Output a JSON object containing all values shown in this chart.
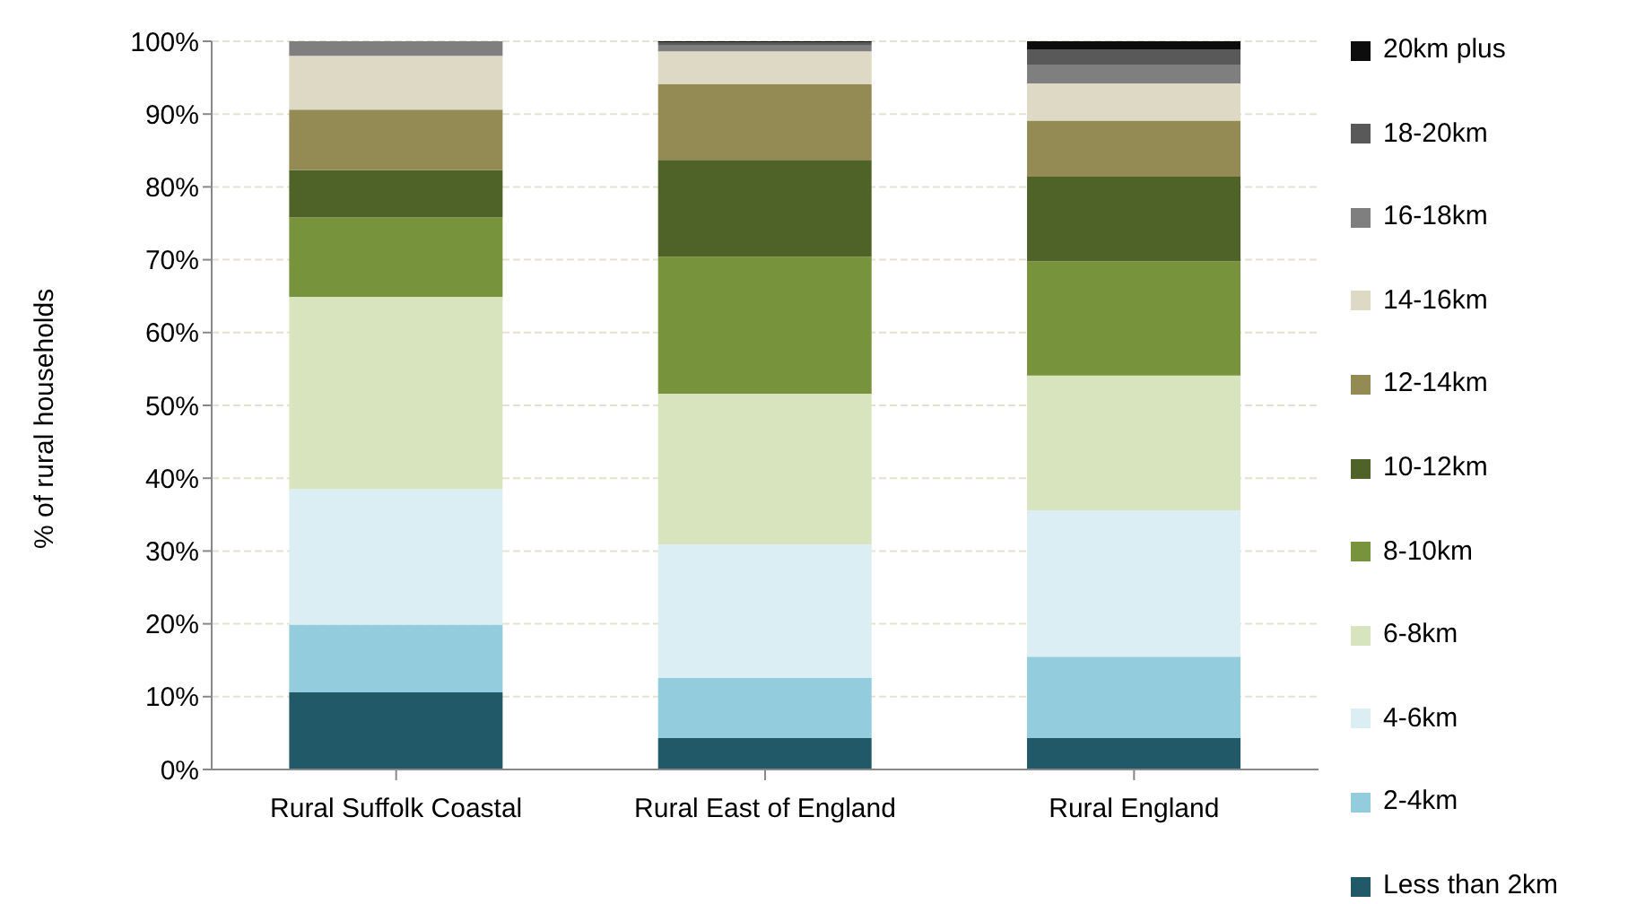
{
  "chart_data": {
    "type": "bar",
    "stacked": true,
    "ylabel": "% of rural households",
    "categories": [
      "Rural Suffolk Coastal",
      "Rural East of England",
      "Rural England"
    ],
    "series": [
      {
        "name": "Less than 2km",
        "color": "#215968",
        "values": [
          10.6,
          4.3,
          4.3
        ]
      },
      {
        "name": "2-4km",
        "color": "#93cddd",
        "values": [
          9.3,
          8.3,
          11.2
        ]
      },
      {
        "name": "4-6km",
        "color": "#dbeef4",
        "values": [
          18.6,
          18.3,
          20.1
        ]
      },
      {
        "name": "6-8km",
        "color": "#d7e4bd",
        "values": [
          26.4,
          20.7,
          18.5
        ]
      },
      {
        "name": "8-10km",
        "color": "#77933c",
        "values": [
          10.9,
          18.8,
          15.7
        ]
      },
      {
        "name": "10-12km",
        "color": "#4f6228",
        "values": [
          6.5,
          13.3,
          11.6
        ]
      },
      {
        "name": "12-14km",
        "color": "#948a54",
        "values": [
          8.3,
          10.4,
          7.7
        ]
      },
      {
        "name": "14-16km",
        "color": "#ddd9c4",
        "values": [
          7.4,
          4.5,
          5.1
        ]
      },
      {
        "name": "16-18km",
        "color": "#7f7f7f",
        "values": [
          2.0,
          0.8,
          2.6
        ]
      },
      {
        "name": "18-20km",
        "color": "#595959",
        "values": [
          0,
          0.4,
          2.1
        ]
      },
      {
        "name": "20km plus",
        "color": "#0d0d0d",
        "values": [
          0,
          0.2,
          1.1
        ]
      }
    ],
    "ylim": [
      0,
      100
    ],
    "yticks": [
      {
        "value": 0,
        "label": "0%"
      },
      {
        "value": 10,
        "label": "10%"
      },
      {
        "value": 20,
        "label": "20%"
      },
      {
        "value": 30,
        "label": "30%"
      },
      {
        "value": 40,
        "label": "40%"
      },
      {
        "value": 50,
        "label": "50%"
      },
      {
        "value": 60,
        "label": "60%"
      },
      {
        "value": 70,
        "label": "70%"
      },
      {
        "value": 80,
        "label": "80%"
      },
      {
        "value": 90,
        "label": "90%"
      },
      {
        "value": 100,
        "label": "100%"
      }
    ],
    "grid": "y",
    "legend": "right"
  }
}
